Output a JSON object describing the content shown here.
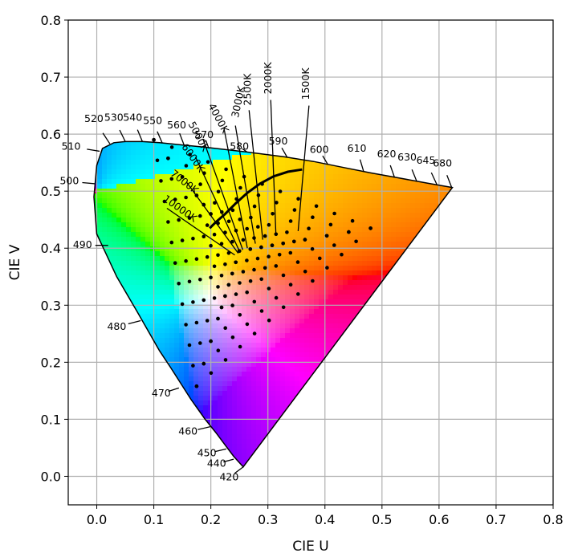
{
  "chart_data": {
    "type": "scatter",
    "title": "",
    "xlabel": "CIE U",
    "ylabel": "CIE V",
    "xlim": [
      -0.05,
      0.8
    ],
    "ylim": [
      -0.05,
      0.8
    ],
    "grid": true,
    "xticks": [
      0.0,
      0.1,
      0.2,
      0.3,
      0.4,
      0.5,
      0.6,
      0.7,
      0.8
    ],
    "yticks": [
      0.0,
      0.1,
      0.2,
      0.3,
      0.4,
      0.5,
      0.6,
      0.7,
      0.8
    ],
    "xtick_labels": [
      "0.0",
      "0.1",
      "0.2",
      "0.3",
      "0.4",
      "0.5",
      "0.6",
      "0.7",
      "0.8"
    ],
    "ytick_labels": [
      "0.0",
      "0.1",
      "0.2",
      "0.3",
      "0.4",
      "0.5",
      "0.6",
      "0.7",
      "0.8"
    ],
    "spectral_locus": [
      [
        0.2568,
        0.0165
      ],
      [
        0.2545,
        0.019
      ],
      [
        0.24,
        0.035
      ],
      [
        0.225,
        0.055
      ],
      [
        0.21,
        0.075
      ],
      [
        0.19,
        0.1
      ],
      [
        0.165,
        0.135
      ],
      [
        0.13,
        0.19
      ],
      [
        0.11,
        0.22
      ],
      [
        0.07,
        0.29
      ],
      [
        0.035,
        0.35
      ],
      [
        0.0,
        0.425
      ],
      [
        -0.005,
        0.49
      ],
      [
        0.0,
        0.545
      ],
      [
        0.01,
        0.575
      ],
      [
        0.03,
        0.585
      ],
      [
        0.05,
        0.587
      ],
      [
        0.08,
        0.587
      ],
      [
        0.11,
        0.585
      ],
      [
        0.15,
        0.581
      ],
      [
        0.2,
        0.576
      ],
      [
        0.26,
        0.569
      ],
      [
        0.33,
        0.56
      ],
      [
        0.38,
        0.552
      ],
      [
        0.43,
        0.542
      ],
      [
        0.48,
        0.532
      ],
      [
        0.53,
        0.523
      ],
      [
        0.58,
        0.514
      ],
      [
        0.6234,
        0.5065
      ]
    ],
    "wavelength_labels": [
      {
        "text": "420",
        "tick": [
          0.2568,
          0.0165
        ],
        "label": [
          0.232,
          -0.002
        ]
      },
      {
        "text": "440",
        "tick": [
          0.24,
          0.03
        ],
        "label": [
          0.21,
          0.022
        ]
      },
      {
        "text": "450",
        "tick": [
          0.227,
          0.048
        ],
        "label": [
          0.193,
          0.04
        ]
      },
      {
        "text": "460",
        "tick": [
          0.199,
          0.087
        ],
        "label": [
          0.16,
          0.078
        ]
      },
      {
        "text": "470",
        "tick": [
          0.144,
          0.155
        ],
        "label": [
          0.113,
          0.145
        ]
      },
      {
        "text": "480",
        "tick": [
          0.077,
          0.273
        ],
        "label": [
          0.035,
          0.262
        ]
      },
      {
        "text": "490",
        "tick": [
          0.02,
          0.405
        ],
        "label": [
          -0.025,
          0.405
        ]
      },
      {
        "text": "500",
        "tick": [
          -0.003,
          0.513
        ],
        "label": [
          -0.048,
          0.517
        ]
      },
      {
        "text": "510",
        "tick": [
          0.005,
          0.57
        ],
        "label": [
          -0.045,
          0.578
        ]
      },
      {
        "text": "520",
        "tick": [
          0.023,
          0.583
        ],
        "label": [
          -0.005,
          0.626
        ]
      },
      {
        "text": "530",
        "tick": [
          0.05,
          0.587
        ],
        "label": [
          0.03,
          0.628
        ]
      },
      {
        "text": "540",
        "tick": [
          0.08,
          0.587
        ],
        "label": [
          0.063,
          0.628
        ]
      },
      {
        "text": "550",
        "tick": [
          0.115,
          0.584
        ],
        "label": [
          0.098,
          0.623
        ]
      },
      {
        "text": "560",
        "tick": [
          0.153,
          0.581
        ],
        "label": [
          0.14,
          0.615
        ]
      },
      {
        "text": "570",
        "tick": [
          0.196,
          0.576
        ],
        "label": [
          0.188,
          0.598
        ]
      },
      {
        "text": "580",
        "tick": [
          0.263,
          0.569
        ],
        "label": [
          0.25,
          0.578
        ]
      },
      {
        "text": "590",
        "tick": [
          0.334,
          0.559
        ],
        "label": [
          0.318,
          0.587
        ]
      },
      {
        "text": "600",
        "tick": [
          0.405,
          0.547
        ],
        "label": [
          0.39,
          0.572
        ]
      },
      {
        "text": "610",
        "tick": [
          0.468,
          0.534
        ],
        "label": [
          0.456,
          0.574
        ]
      },
      {
        "text": "620",
        "tick": [
          0.522,
          0.524
        ],
        "label": [
          0.508,
          0.564
        ]
      },
      {
        "text": "630",
        "tick": [
          0.561,
          0.517
        ],
        "label": [
          0.544,
          0.559
        ]
      },
      {
        "text": "645",
        "tick": [
          0.596,
          0.512
        ],
        "label": [
          0.577,
          0.553
        ]
      },
      {
        "text": "680",
        "tick": [
          0.622,
          0.507
        ],
        "label": [
          0.606,
          0.548
        ]
      }
    ],
    "planckian_locus": [
      [
        0.36,
        0.538
      ],
      [
        0.335,
        0.534
      ],
      [
        0.31,
        0.526
      ],
      [
        0.286,
        0.513
      ],
      [
        0.264,
        0.497
      ],
      [
        0.244,
        0.479
      ],
      [
        0.225,
        0.46
      ],
      [
        0.208,
        0.445
      ],
      [
        0.198,
        0.435
      ]
    ],
    "cct_labels": [
      {
        "text": "1500K",
        "line": [
          [
            0.353,
            0.43
          ],
          [
            0.372,
            0.65
          ]
        ],
        "label": [
          0.372,
          0.66
        ],
        "rotate": -90
      },
      {
        "text": "2000K",
        "line": [
          [
            0.314,
            0.425
          ],
          [
            0.305,
            0.66
          ]
        ],
        "label": [
          0.306,
          0.67
        ],
        "rotate": -90
      },
      {
        "text": "2500K",
        "line": [
          [
            0.291,
            0.415
          ],
          [
            0.267,
            0.642
          ]
        ],
        "label": [
          0.27,
          0.65
        ],
        "rotate": -90
      },
      {
        "text": "3000K",
        "line": [
          [
            0.278,
            0.408
          ],
          [
            0.243,
            0.615
          ]
        ],
        "label": [
          0.248,
          0.628
        ],
        "rotate": -78
      },
      {
        "text": "4000K",
        "line": [
          [
            0.264,
            0.4
          ],
          [
            0.223,
            0.61
          ]
        ],
        "label": [
          0.195,
          0.65
        ],
        "rotate": 62
      },
      {
        "text": "5000K",
        "line": [
          [
            0.256,
            0.397
          ],
          [
            0.186,
            0.592
          ]
        ],
        "label": [
          0.16,
          0.618
        ],
        "rotate": 62
      },
      {
        "text": "6000K",
        "line": [
          [
            0.251,
            0.393
          ],
          [
            0.173,
            0.56
          ]
        ],
        "label": [
          0.148,
          0.578
        ],
        "rotate": 55
      },
      {
        "text": "7000K",
        "line": [
          [
            0.248,
            0.391
          ],
          [
            0.158,
            0.515
          ]
        ],
        "label": [
          0.128,
          0.529
        ],
        "rotate": 38
      },
      {
        "text": "10000K",
        "line": [
          [
            0.242,
            0.388
          ],
          [
            0.123,
            0.47
          ]
        ],
        "label": [
          0.115,
          0.484
        ],
        "rotate": 35
      }
    ],
    "point_grid": {
      "white_point": [
        0.25,
        0.395
      ],
      "red_primary": [
        0.48,
        0.435
      ],
      "blue_primary": [
        0.175,
        0.158
      ],
      "green_primary": [
        0.1,
        0.59
      ],
      "steps": 12
    }
  }
}
